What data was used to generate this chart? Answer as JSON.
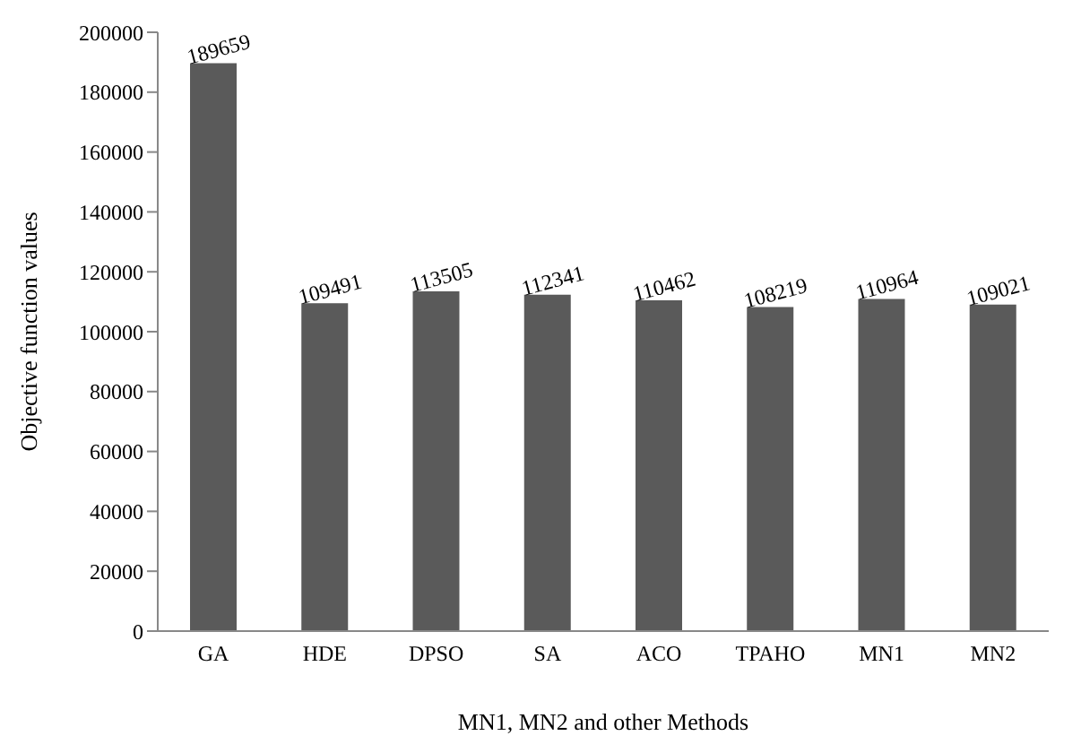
{
  "chart_data": {
    "type": "bar",
    "xlabel": "MN1, MN2 and other Methods",
    "ylabel": "Objective function values",
    "categories": [
      "GA",
      "HDE",
      "DPSO",
      "SA",
      "ACO",
      "TPAHO",
      "MN1",
      "MN2"
    ],
    "values": [
      189659,
      109491,
      113505,
      112341,
      110462,
      108219,
      110964,
      109021
    ],
    "color": "#5a5a5a",
    "ylim": [
      0,
      200000
    ],
    "yticks": [
      0,
      20000,
      40000,
      60000,
      80000,
      100000,
      120000,
      140000,
      160000,
      180000,
      200000
    ],
    "grid": false,
    "data_labels": true
  }
}
